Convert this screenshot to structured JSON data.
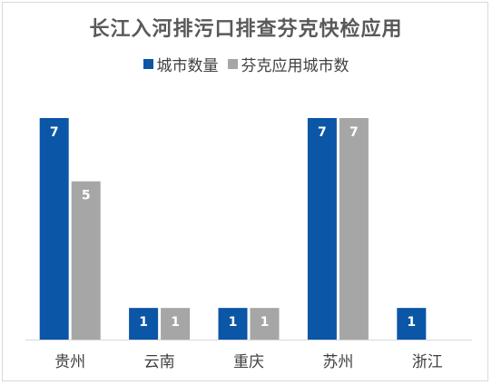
{
  "chart_data": {
    "type": "bar",
    "title": "长江入河排污口排查芬克快检应用",
    "categories": [
      "贵州",
      "云南",
      "重庆",
      "苏州",
      "浙江"
    ],
    "series": [
      {
        "name": "城市数量",
        "values": [
          7,
          1,
          1,
          7,
          1
        ],
        "color": "#0b56a6"
      },
      {
        "name": "芬克应用城市数",
        "values": [
          5,
          1,
          1,
          7,
          null
        ],
        "color": "#a6a6a6"
      }
    ],
    "ylim": [
      0,
      7
    ],
    "grid": false,
    "legend_position": "top",
    "data_labels": true
  }
}
